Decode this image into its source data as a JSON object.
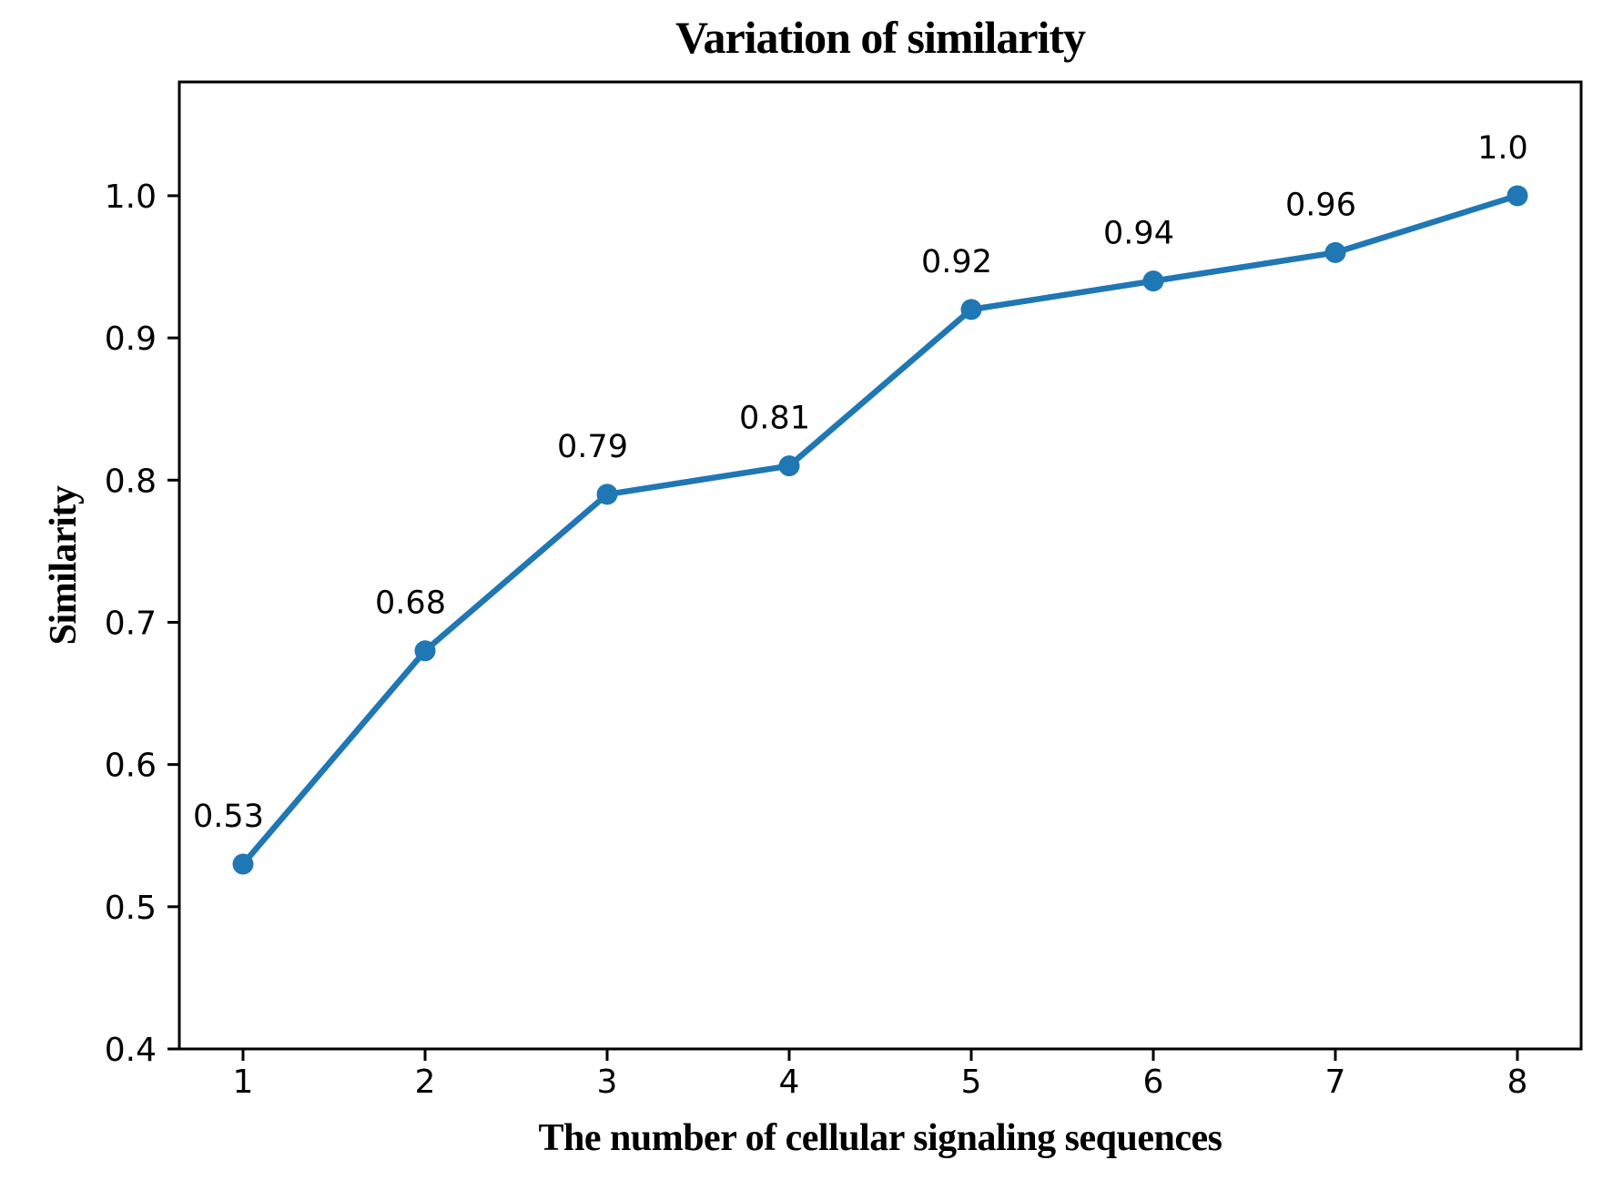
{
  "chart_data": {
    "type": "line",
    "title": "Variation of similarity",
    "xlabel": "The number of cellular signaling sequences",
    "ylabel": "Similarity",
    "x": [
      1,
      2,
      3,
      4,
      5,
      6,
      7,
      8
    ],
    "y": [
      0.53,
      0.68,
      0.79,
      0.81,
      0.92,
      0.94,
      0.96,
      1.0
    ],
    "point_labels": [
      "0.53",
      "0.68",
      "0.79",
      "0.81",
      "0.92",
      "0.94",
      "0.96",
      "1.0"
    ],
    "xticks": [
      1,
      2,
      3,
      4,
      5,
      6,
      7,
      8
    ],
    "xtick_labels": [
      "1",
      "2",
      "3",
      "4",
      "5",
      "6",
      "7",
      "8"
    ],
    "yticks": [
      0.4,
      0.5,
      0.6,
      0.7,
      0.8,
      0.9,
      1.0
    ],
    "ytick_labels": [
      "0.4",
      "0.5",
      "0.6",
      "0.7",
      "0.8",
      "0.9",
      "1.0"
    ],
    "xlim": [
      0.65,
      8.35
    ],
    "ylim": [
      0.4,
      1.08
    ],
    "grid": false,
    "legend": null,
    "line_color": "#1f77b4",
    "marker": "circle",
    "axes_color": "#000000",
    "background_color": "#ffffff"
  }
}
